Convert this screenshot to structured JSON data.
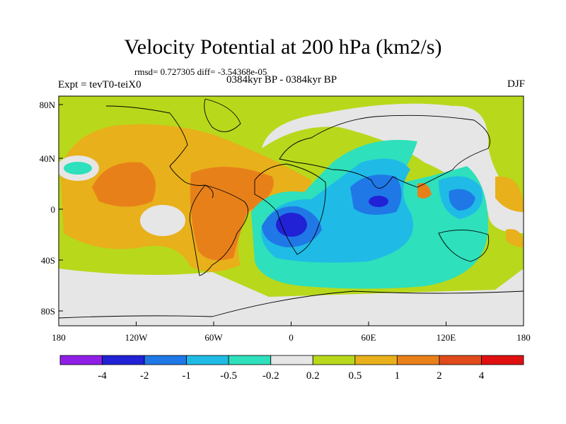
{
  "map": {
    "title": "Velocity Potential at 200 hPa (km2/s)",
    "stats": "rmsd= 0.727305 diff= -3.54368e-05",
    "left_label": "Expt = tevT0-teiX0",
    "center_label": "0384kyr BP - 0384kyr BP",
    "right_label": "DJF",
    "lat_ticks": [
      "80N",
      "40N",
      "0",
      "40S",
      "80S"
    ],
    "lon_ticks": [
      "180",
      "120W",
      "60W",
      "0",
      "60E",
      "120E",
      "180"
    ]
  },
  "colorbar": {
    "colors": [
      "#8f1fe6",
      "#2121d6",
      "#1f78e6",
      "#1fbbe6",
      "#2ee0bb",
      "#e6e6e6",
      "#b8d81c",
      "#e8b01a",
      "#e8801a",
      "#e04a1a",
      "#e01010"
    ],
    "labels": [
      "-4",
      "-2",
      "-1",
      "-0.5",
      "-0.2",
      "0.2",
      "0.5",
      "1",
      "2",
      "4"
    ]
  }
}
